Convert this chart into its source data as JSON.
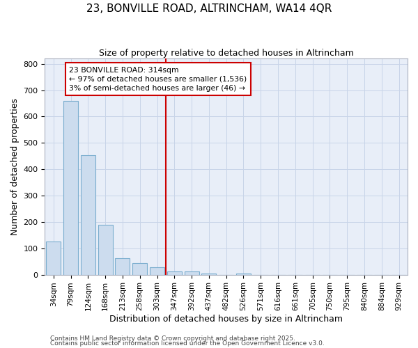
{
  "title1": "23, BONVILLE ROAD, ALTRINCHAM, WA14 4QR",
  "title2": "Size of property relative to detached houses in Altrincham",
  "xlabel": "Distribution of detached houses by size in Altrincham",
  "ylabel": "Number of detached properties",
  "categories": [
    "34sqm",
    "79sqm",
    "124sqm",
    "168sqm",
    "213sqm",
    "258sqm",
    "303sqm",
    "347sqm",
    "392sqm",
    "437sqm",
    "482sqm",
    "526sqm",
    "571sqm",
    "616sqm",
    "661sqm",
    "705sqm",
    "750sqm",
    "795sqm",
    "840sqm",
    "884sqm",
    "929sqm"
  ],
  "values": [
    127,
    660,
    452,
    188,
    63,
    45,
    27,
    13,
    13,
    5,
    0,
    5,
    0,
    0,
    0,
    0,
    0,
    0,
    0,
    0,
    0
  ],
  "bar_color": "#ccdcee",
  "bar_edge_color": "#7aadce",
  "bar_linewidth": 0.8,
  "grid_color": "#c8d4e8",
  "bg_color": "#ffffff",
  "plot_bg_color": "#e8eef8",
  "vline_x": 6.5,
  "vline_color": "#cc0000",
  "vline_linewidth": 1.5,
  "annotation_line1": "23 BONVILLE ROAD: 314sqm",
  "annotation_line2": "← 97% of detached houses are smaller (1,536)",
  "annotation_line3": "3% of semi-detached houses are larger (46) →",
  "annotation_box_color": "#cc0000",
  "annotation_bg": "#ffffff",
  "footnote1": "Contains HM Land Registry data © Crown copyright and database right 2025.",
  "footnote2": "Contains public sector information licensed under the Open Government Licence v3.0.",
  "ylim": [
    0,
    820
  ],
  "yticks": [
    0,
    100,
    200,
    300,
    400,
    500,
    600,
    700,
    800
  ],
  "figsize": [
    6.0,
    5.0
  ],
  "dpi": 100,
  "title1_fontsize": 11,
  "title2_fontsize": 9,
  "xlabel_fontsize": 9,
  "ylabel_fontsize": 9,
  "tick_fontsize": 8,
  "xtick_fontsize": 7.5,
  "footnote_fontsize": 6.5
}
